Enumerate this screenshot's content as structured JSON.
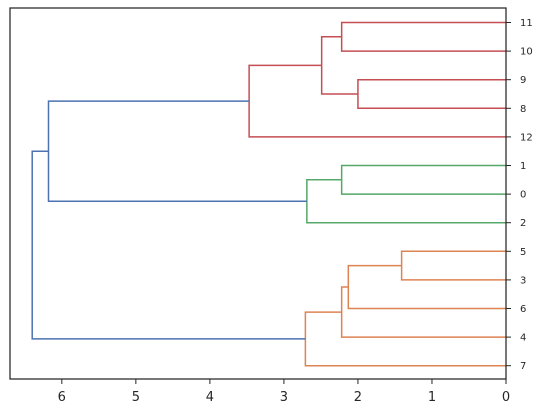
{
  "chart_data": {
    "type": "dendrogram",
    "orientation": "left",
    "title": "",
    "xlabel": "",
    "ylabel": "",
    "xlim": [
      6.7,
      0
    ],
    "x_ticks": [
      6,
      5,
      4,
      3,
      2,
      1,
      0
    ],
    "x_tick_labels": [
      "6",
      "5",
      "4",
      "3",
      "2",
      "1",
      "0"
    ],
    "leaf_order_top_to_bottom": [
      "11",
      "10",
      "9",
      "8",
      "12",
      "1",
      "0",
      "2",
      "5",
      "3",
      "6",
      "4",
      "7"
    ],
    "colors": {
      "cluster_red": "#c44e52",
      "cluster_green": "#55a868",
      "cluster_orange": "#dd8452",
      "above_threshold": "#4c72b0",
      "axes": "#262626"
    },
    "merges": [
      {
        "left": "11",
        "right": "10",
        "height": 2.22,
        "color": "cluster_red"
      },
      {
        "left": "9",
        "right": "8",
        "height": 2.0,
        "color": "cluster_red"
      },
      {
        "left": "(11,10)",
        "right": "(9,8)",
        "height": 2.49,
        "color": "cluster_red"
      },
      {
        "left": "((11,10),(9,8))",
        "right": "12",
        "height": 3.47,
        "color": "cluster_red"
      },
      {
        "left": "1",
        "right": "0",
        "height": 2.22,
        "color": "cluster_green"
      },
      {
        "left": "(1,0)",
        "right": "2",
        "height": 2.69,
        "color": "cluster_green"
      },
      {
        "left": "cluster_red",
        "right": "cluster_green",
        "height": 6.18,
        "color": "above_threshold"
      },
      {
        "left": "5",
        "right": "3",
        "height": 1.41,
        "color": "cluster_orange"
      },
      {
        "left": "(5,3)",
        "right": "6",
        "height": 2.13,
        "color": "cluster_orange"
      },
      {
        "left": "((5,3),6)",
        "right": "4",
        "height": 2.22,
        "color": "cluster_orange"
      },
      {
        "left": "(((5,3),6),4)",
        "right": "7",
        "height": 2.71,
        "color": "cluster_orange"
      },
      {
        "left": "top_group",
        "right": "cluster_orange",
        "height": 6.4,
        "color": "above_threshold"
      }
    ]
  }
}
